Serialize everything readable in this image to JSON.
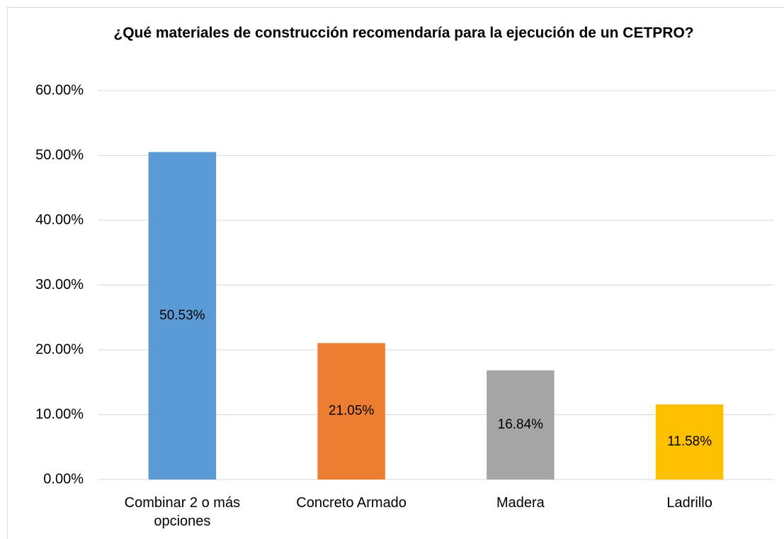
{
  "chart_data": {
    "type": "bar",
    "title": "¿Qué materiales de construcción recomendaría para la ejecución de un CETPRO?",
    "categories": [
      "Combinar 2 o más opciones",
      "Concreto Armado",
      "Madera",
      "Ladrillo"
    ],
    "values": [
      50.53,
      21.05,
      16.84,
      11.58
    ],
    "value_labels": [
      "50.53%",
      "21.05%",
      "16.84%",
      "11.58%"
    ],
    "colors": [
      "#5b9bd5",
      "#ed7d31",
      "#a5a5a5",
      "#ffc000"
    ],
    "ylim": [
      0,
      60
    ],
    "yticks": [
      {
        "value": 0,
        "label": "0.00%"
      },
      {
        "value": 10,
        "label": "10.00%"
      },
      {
        "value": 20,
        "label": "20.00%"
      },
      {
        "value": 30,
        "label": "30.00%"
      },
      {
        "value": 40,
        "label": "40.00%"
      },
      {
        "value": 50,
        "label": "50.00%"
      },
      {
        "value": 60,
        "label": "60.00%"
      }
    ],
    "grid": true
  }
}
